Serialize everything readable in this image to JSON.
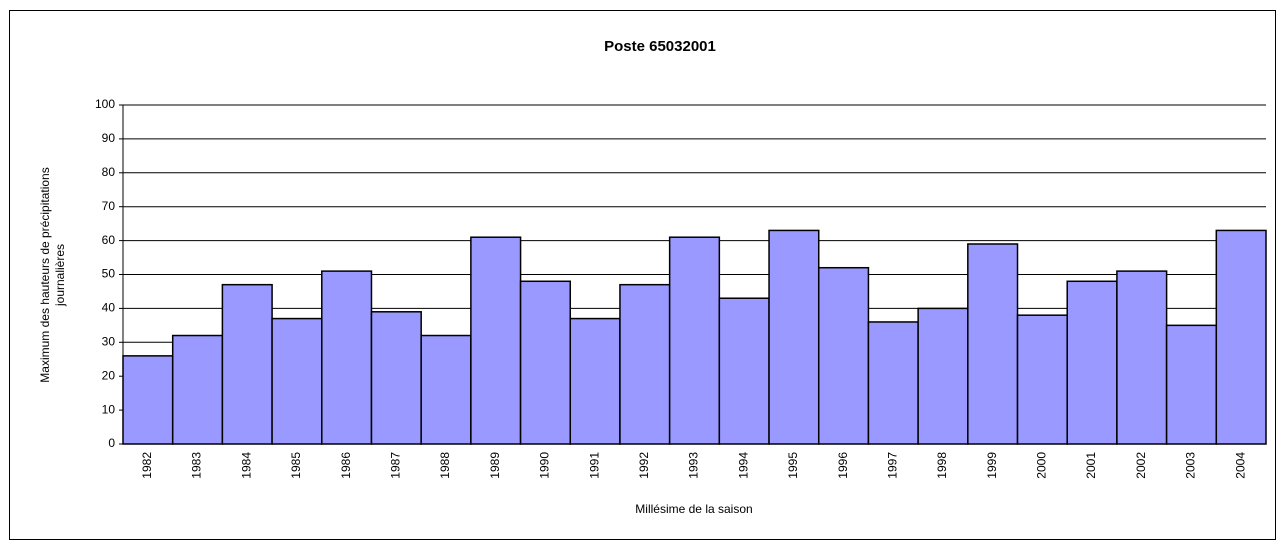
{
  "chart_data": {
    "type": "bar",
    "title": "Poste 65032001",
    "x_label": "Millésime de la saison",
    "y_label": [
      "Maximum des hauteurs de précipitations",
      "journalières"
    ],
    "categories": [
      "1982",
      "1983",
      "1984",
      "1985",
      "1986",
      "1987",
      "1988",
      "1989",
      "1990",
      "1991",
      "1992",
      "1993",
      "1994",
      "1995",
      "1996",
      "1997",
      "1998",
      "1999",
      "2000",
      "2001",
      "2002",
      "2003",
      "2004"
    ],
    "values": [
      26,
      32,
      47,
      37,
      51,
      39,
      32,
      61,
      48,
      37,
      47,
      61,
      43,
      63,
      52,
      36,
      40,
      59,
      38,
      48,
      51,
      35,
      63
    ],
    "color": "#9999ff",
    "ylim": [
      0,
      100
    ],
    "yticks": [
      0,
      10,
      20,
      30,
      40,
      50,
      60,
      70,
      80,
      90,
      100
    ],
    "grid": true
  }
}
